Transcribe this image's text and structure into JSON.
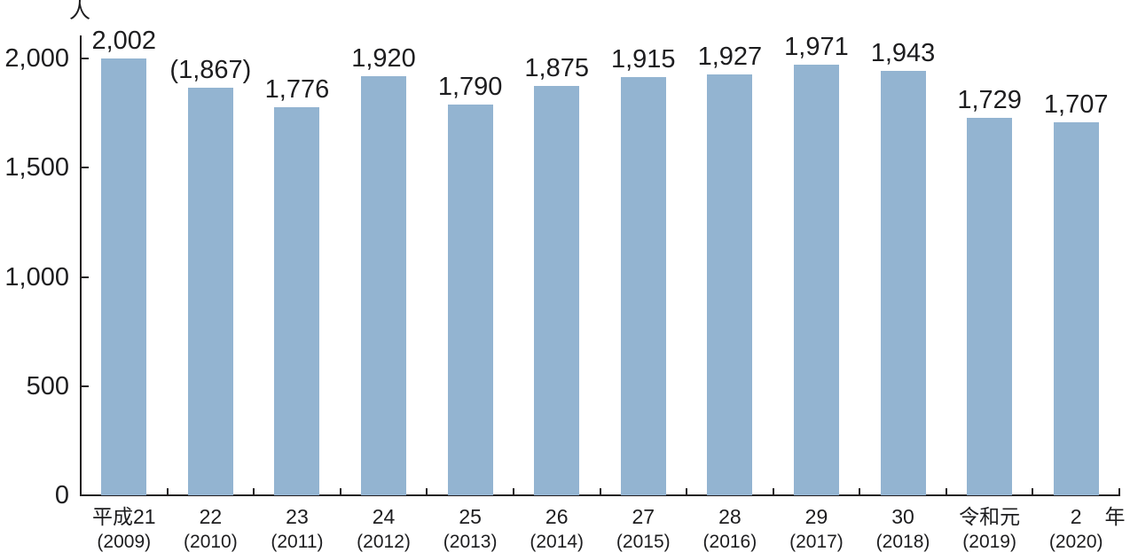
{
  "chart_data": {
    "type": "bar",
    "title": "",
    "unit_label": "人",
    "x_axis_suffix": "年",
    "ylabel": "人",
    "ylim": [
      0,
      2000
    ],
    "grid": false,
    "legend": "none",
    "bar_color": "#93b4d1",
    "axis_color": "#231f20",
    "y_ticks": [
      {
        "value": 0,
        "label": "0"
      },
      {
        "value": 500,
        "label": "500"
      },
      {
        "value": 1000,
        "label": "1,000"
      },
      {
        "value": 1500,
        "label": "1,500"
      },
      {
        "value": 2000,
        "label": "2,000"
      }
    ],
    "categories": [
      {
        "era": "平成21",
        "year": "(2009)"
      },
      {
        "era": "22",
        "year": "(2010)"
      },
      {
        "era": "23",
        "year": "(2011)"
      },
      {
        "era": "24",
        "year": "(2012)"
      },
      {
        "era": "25",
        "year": "(2013)"
      },
      {
        "era": "26",
        "year": "(2014)"
      },
      {
        "era": "27",
        "year": "(2015)"
      },
      {
        "era": "28",
        "year": "(2016)"
      },
      {
        "era": "29",
        "year": "(2017)"
      },
      {
        "era": "30",
        "year": "(2018)"
      },
      {
        "era": "令和元",
        "year": "(2019)"
      },
      {
        "era": "2",
        "year": "(2020)"
      }
    ],
    "values": [
      2002,
      1867,
      1776,
      1920,
      1790,
      1875,
      1915,
      1927,
      1971,
      1943,
      1729,
      1707
    ],
    "value_labels": [
      "2,002",
      "(1,867)",
      "1,776",
      "1,920",
      "1,790",
      "1,875",
      "1,915",
      "1,927",
      "1,971",
      "1,943",
      "1,729",
      "1,707"
    ]
  }
}
